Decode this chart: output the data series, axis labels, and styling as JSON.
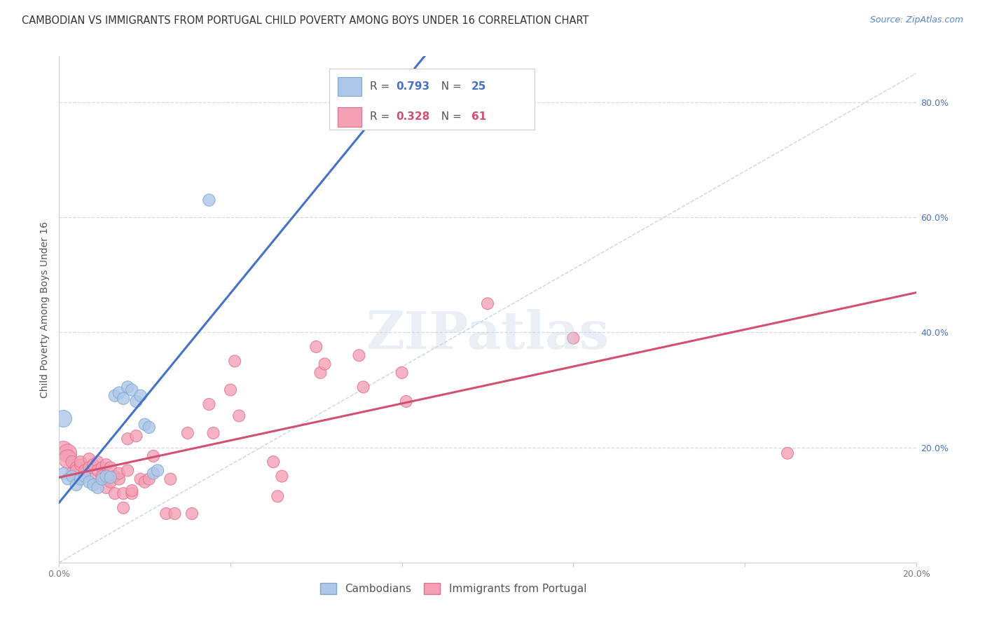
{
  "title": "CAMBODIAN VS IMMIGRANTS FROM PORTUGAL CHILD POVERTY AMONG BOYS UNDER 16 CORRELATION CHART",
  "source": "Source: ZipAtlas.com",
  "ylabel_left": "Child Poverty Among Boys Under 16",
  "xlim": [
    0.0,
    0.2
  ],
  "ylim": [
    0.0,
    0.88
  ],
  "x_ticks": [
    0.0,
    0.04,
    0.08,
    0.12,
    0.16,
    0.2
  ],
  "x_tick_labels": [
    "0.0%",
    "",
    "",
    "",
    "",
    "20.0%"
  ],
  "y_ticks": [
    0.0,
    0.2,
    0.4,
    0.6,
    0.8
  ],
  "y_tick_labels_right": [
    "",
    "20.0%",
    "40.0%",
    "60.0%",
    "80.0%"
  ],
  "watermark": "ZIPatlas",
  "cambodian_color": "#aec6e8",
  "cambodian_edge": "#7aaad0",
  "portugal_color": "#f4a0b5",
  "portugal_edge": "#e07090",
  "cambodian_line_color": "#4472c4",
  "portugal_line_color": "#d45070",
  "diag_line_color": "#b8ccd8",
  "cambodian_r": "0.793",
  "cambodian_n": "25",
  "portugal_r": "0.328",
  "portugal_n": "61",
  "background_color": "#ffffff",
  "grid_color": "#d8d8e8",
  "title_fontsize": 10.5,
  "source_fontsize": 9,
  "axis_label_fontsize": 10,
  "tick_fontsize": 9,
  "legend_fontsize": 11,
  "cambodian_points": [
    [
      0.001,
      0.155
    ],
    [
      0.002,
      0.145
    ],
    [
      0.003,
      0.15
    ],
    [
      0.004,
      0.135
    ],
    [
      0.005,
      0.145
    ],
    [
      0.006,
      0.15
    ],
    [
      0.007,
      0.14
    ],
    [
      0.008,
      0.135
    ],
    [
      0.009,
      0.13
    ],
    [
      0.01,
      0.145
    ],
    [
      0.011,
      0.15
    ],
    [
      0.012,
      0.148
    ],
    [
      0.013,
      0.29
    ],
    [
      0.014,
      0.295
    ],
    [
      0.015,
      0.285
    ],
    [
      0.016,
      0.305
    ],
    [
      0.017,
      0.3
    ],
    [
      0.018,
      0.28
    ],
    [
      0.019,
      0.29
    ],
    [
      0.02,
      0.24
    ],
    [
      0.021,
      0.235
    ],
    [
      0.022,
      0.155
    ],
    [
      0.023,
      0.16
    ],
    [
      0.035,
      0.63
    ],
    [
      0.001,
      0.25
    ]
  ],
  "portugal_points": [
    [
      0.001,
      0.195
    ],
    [
      0.002,
      0.19
    ],
    [
      0.002,
      0.18
    ],
    [
      0.003,
      0.175
    ],
    [
      0.003,
      0.155
    ],
    [
      0.004,
      0.165
    ],
    [
      0.004,
      0.16
    ],
    [
      0.005,
      0.17
    ],
    [
      0.005,
      0.175
    ],
    [
      0.006,
      0.155
    ],
    [
      0.006,
      0.16
    ],
    [
      0.007,
      0.18
    ],
    [
      0.007,
      0.165
    ],
    [
      0.008,
      0.17
    ],
    [
      0.008,
      0.145
    ],
    [
      0.009,
      0.175
    ],
    [
      0.009,
      0.16
    ],
    [
      0.01,
      0.165
    ],
    [
      0.01,
      0.15
    ],
    [
      0.011,
      0.17
    ],
    [
      0.011,
      0.13
    ],
    [
      0.012,
      0.165
    ],
    [
      0.012,
      0.14
    ],
    [
      0.013,
      0.15
    ],
    [
      0.013,
      0.12
    ],
    [
      0.014,
      0.145
    ],
    [
      0.014,
      0.155
    ],
    [
      0.015,
      0.095
    ],
    [
      0.015,
      0.12
    ],
    [
      0.016,
      0.16
    ],
    [
      0.016,
      0.215
    ],
    [
      0.017,
      0.12
    ],
    [
      0.017,
      0.125
    ],
    [
      0.018,
      0.22
    ],
    [
      0.019,
      0.145
    ],
    [
      0.02,
      0.14
    ],
    [
      0.021,
      0.145
    ],
    [
      0.022,
      0.185
    ],
    [
      0.025,
      0.085
    ],
    [
      0.026,
      0.145
    ],
    [
      0.027,
      0.085
    ],
    [
      0.03,
      0.225
    ],
    [
      0.031,
      0.085
    ],
    [
      0.035,
      0.275
    ],
    [
      0.036,
      0.225
    ],
    [
      0.04,
      0.3
    ],
    [
      0.041,
      0.35
    ],
    [
      0.042,
      0.255
    ],
    [
      0.05,
      0.175
    ],
    [
      0.051,
      0.115
    ],
    [
      0.052,
      0.15
    ],
    [
      0.06,
      0.375
    ],
    [
      0.061,
      0.33
    ],
    [
      0.062,
      0.345
    ],
    [
      0.07,
      0.36
    ],
    [
      0.071,
      0.305
    ],
    [
      0.08,
      0.33
    ],
    [
      0.081,
      0.28
    ],
    [
      0.1,
      0.45
    ],
    [
      0.12,
      0.39
    ],
    [
      0.17,
      0.19
    ]
  ],
  "cam_line_x": [
    0.0,
    0.2
  ],
  "cam_line_y_intercept": 0.095,
  "cam_line_slope": 22.0,
  "por_line_x": [
    0.0,
    0.2
  ],
  "por_line_y_intercept": 0.155,
  "por_line_slope": 1.55
}
